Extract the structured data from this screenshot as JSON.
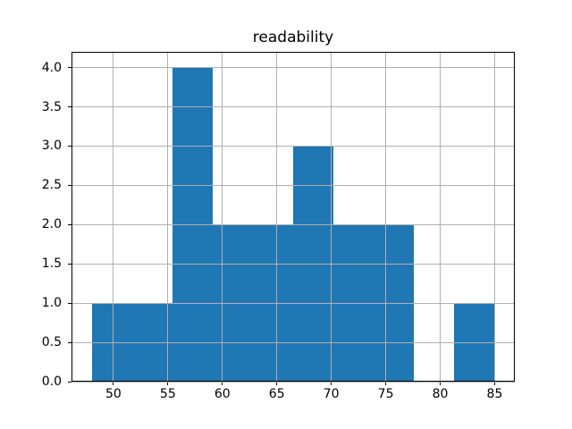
{
  "figure": {
    "background": "#ffffff"
  },
  "chart_data": {
    "type": "bar",
    "subtype": "histogram",
    "title": "readability",
    "xlabel": "",
    "ylabel": "",
    "bin_edges": [
      48.0,
      51.7,
      55.4,
      59.1,
      62.8,
      66.5,
      70.2,
      73.9,
      77.6,
      81.3,
      85.0
    ],
    "values": [
      1,
      1,
      4,
      2,
      2,
      3,
      2,
      2,
      0,
      1
    ],
    "xticks": [
      50,
      55,
      60,
      65,
      70,
      75,
      80,
      85
    ],
    "ytick_labels": [
      "0.0",
      "0.5",
      "1.0",
      "1.5",
      "2.0",
      "2.5",
      "3.0",
      "3.5",
      "4.0"
    ],
    "xlim": [
      46.15,
      86.85
    ],
    "ylim": [
      0,
      4.2
    ],
    "grid": true,
    "grid_over_bars": true,
    "legend": null,
    "bar_color": "#1f77b4",
    "grid_color": "#b0b0b0",
    "spine_color": "#000000",
    "text_color": "#000000"
  }
}
